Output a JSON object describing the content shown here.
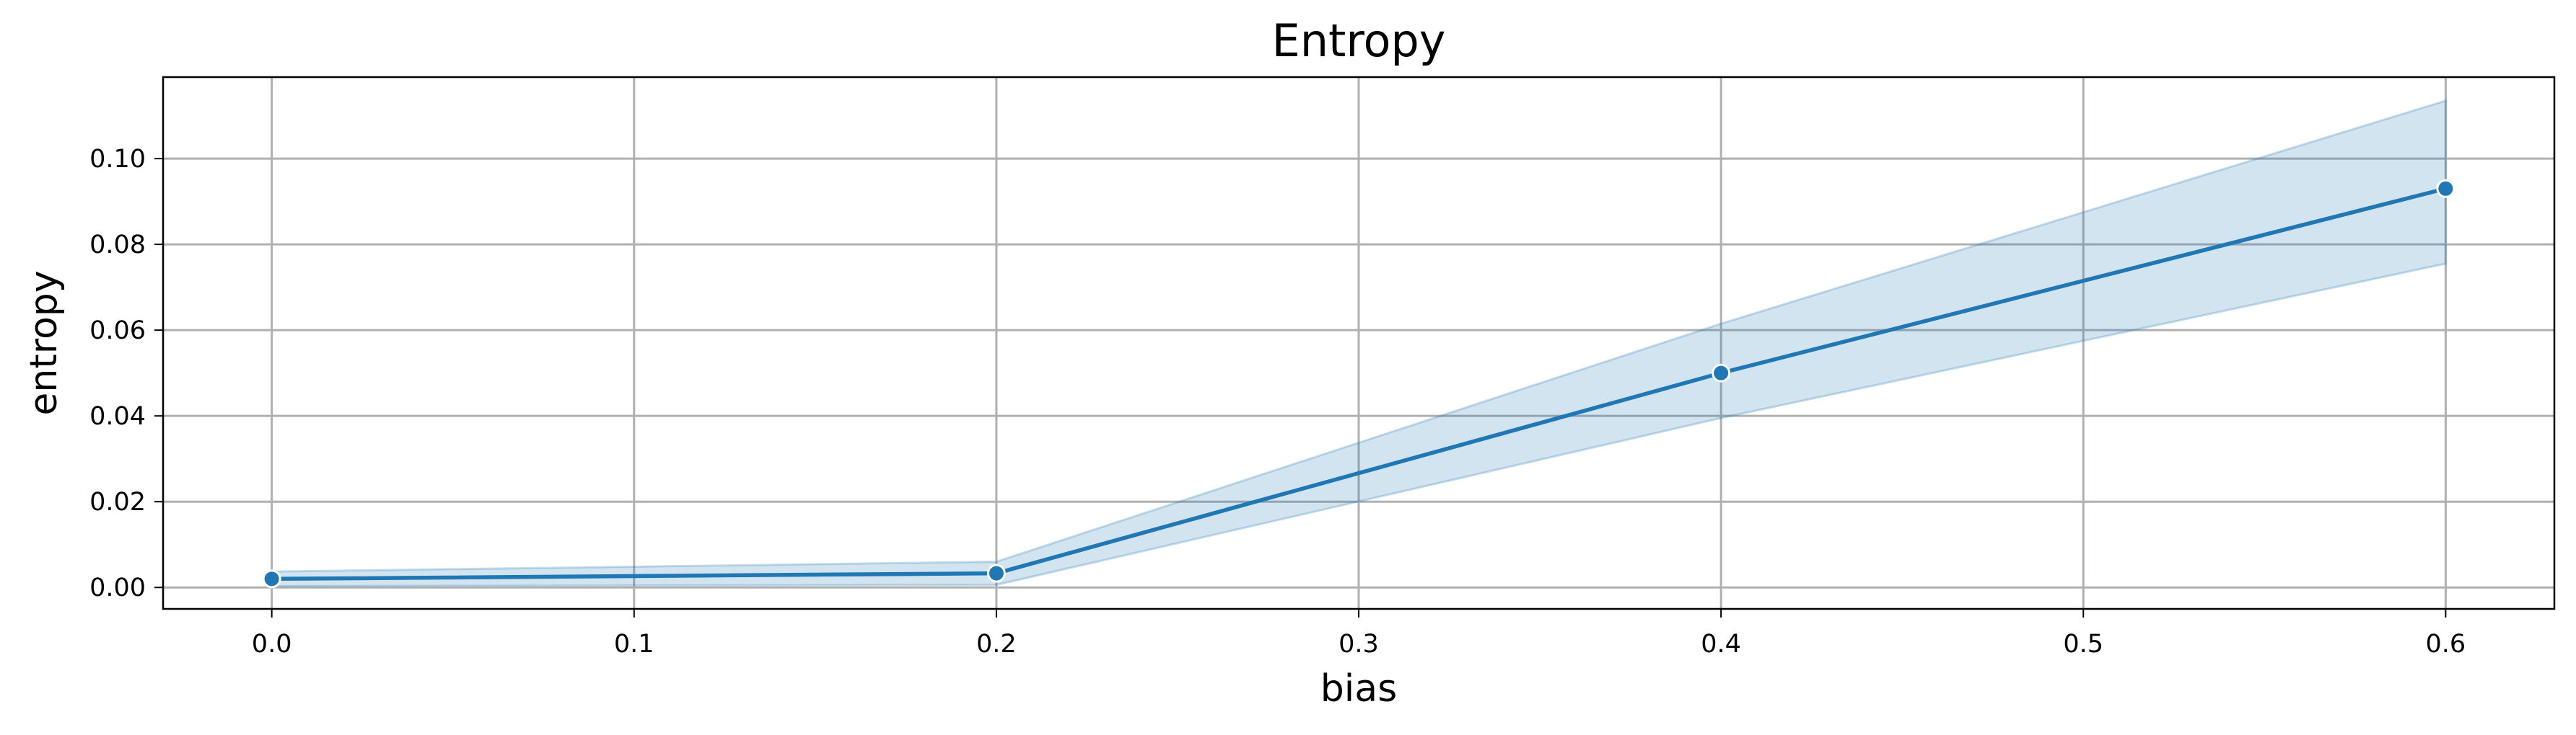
{
  "chart_data": {
    "type": "line",
    "title": "Entropy",
    "xlabel": "bias",
    "ylabel": "entropy",
    "x": [
      0.0,
      0.2,
      0.4,
      0.6
    ],
    "series": [
      {
        "values": [
          0.002,
          0.0033,
          0.05,
          0.093
        ],
        "ci_lower": [
          0.0003,
          0.0006,
          0.0395,
          0.0755
        ],
        "ci_upper": [
          0.0037,
          0.006,
          0.0615,
          0.1135
        ],
        "color": "#1f77b4",
        "band_color": "#1f77b4"
      }
    ],
    "xlim": [
      -0.03,
      0.63
    ],
    "ylim": [
      -0.005,
      0.119
    ],
    "x_ticks": [
      0.0,
      0.1,
      0.2,
      0.3,
      0.4,
      0.5,
      0.6
    ],
    "x_tick_labels": [
      "0.0",
      "0.1",
      "0.2",
      "0.3",
      "0.4",
      "0.5",
      "0.6"
    ],
    "y_ticks": [
      0.0,
      0.02,
      0.04,
      0.06,
      0.08,
      0.1
    ],
    "y_tick_labels": [
      "0.00",
      "0.02",
      "0.04",
      "0.06",
      "0.08",
      "0.10"
    ],
    "grid": true,
    "markers": "circle"
  }
}
